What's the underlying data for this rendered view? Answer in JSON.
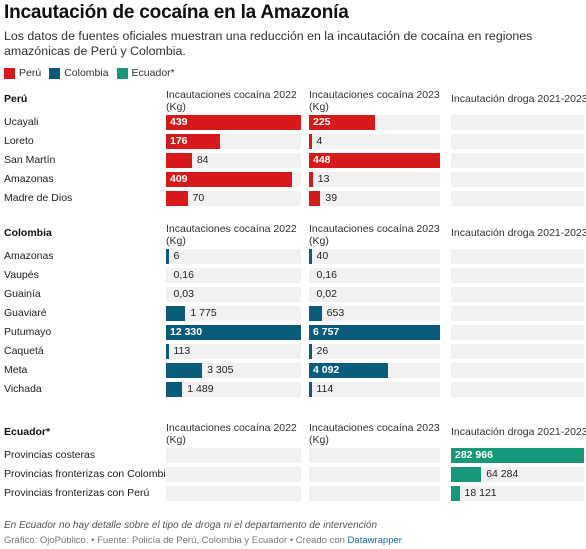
{
  "title": "Incautación de cocaína en la Amazonía",
  "subtitle": "Los datos de fuentes oficiales muestran una reducción en la incautación de cocaína en regiones amazónicas de Perú y Colombia.",
  "legend": [
    {
      "label": "Perú",
      "color": "#d7191c"
    },
    {
      "label": "Colombia",
      "color": "#0b5c7a"
    },
    {
      "label": "Ecuador*",
      "color": "#18987a"
    }
  ],
  "colors": {
    "peru": "#d7191c",
    "colombia": "#0b5c7a",
    "ecuador": "#18987a",
    "cell_bg": "#f1f1f1"
  },
  "chart_data": {
    "type": "table",
    "columns": [
      "Incautaciones cocaína 2022 (Kg)",
      "Incautaciones cocaína 2023 (Kg)",
      "Incautación droga 2021-2023"
    ],
    "sections": [
      {
        "name": "Perú",
        "color": "#d7191c",
        "headers": [
          "Incautaciones cocaína 2022 (Kg)",
          "Incautaciones cocaína 2023 (Kg)",
          "Incautación droga 2021-2023"
        ],
        "rows": [
          {
            "label": "Ucayali",
            "v2022": 439,
            "t2022": "439",
            "v2023": 225,
            "t2023": "225",
            "v2123": null,
            "t2123": ""
          },
          {
            "label": "Loreto",
            "v2022": 176,
            "t2022": "176",
            "v2023": 4,
            "t2023": "4",
            "v2123": null,
            "t2123": ""
          },
          {
            "label": "San Martín",
            "v2022": 84,
            "t2022": "84",
            "v2023": 448,
            "t2023": "448",
            "v2123": null,
            "t2123": ""
          },
          {
            "label": "Amazonas",
            "v2022": 409,
            "t2022": "409",
            "v2023": 13,
            "t2023": "13",
            "v2123": null,
            "t2123": ""
          },
          {
            "label": "Madre de Dios",
            "v2022": 70,
            "t2022": "70",
            "v2023": 39,
            "t2023": "39",
            "v2123": null,
            "t2123": ""
          }
        ]
      },
      {
        "name": "Colombia",
        "color": "#0b5c7a",
        "headers": [
          "Incautaciones cocaína 2022 (Kg)",
          "Incautaciones cocaína 2023 (Kg)",
          "Incautación droga 2021-2023"
        ],
        "rows": [
          {
            "label": "Amazonas",
            "v2022": 6,
            "t2022": "6",
            "v2023": 40,
            "t2023": "40",
            "v2123": null,
            "t2123": ""
          },
          {
            "label": "Vaupés",
            "v2022": 0.16,
            "t2022": "0,16",
            "v2023": 0.16,
            "t2023": "0,16",
            "v2123": null,
            "t2123": ""
          },
          {
            "label": "Guainía",
            "v2022": 0.03,
            "t2022": "0,03",
            "v2023": 0.02,
            "t2023": "0,02",
            "v2123": null,
            "t2123": ""
          },
          {
            "label": "Guaviaré",
            "v2022": 1775,
            "t2022": "1 775",
            "v2023": 653,
            "t2023": "653",
            "v2123": null,
            "t2123": ""
          },
          {
            "label": "Putumayo",
            "v2022": 12330,
            "t2022": "12 330",
            "v2023": 6757,
            "t2023": "6 757",
            "v2123": null,
            "t2123": ""
          },
          {
            "label": "Caquetá",
            "v2022": 113,
            "t2022": "113",
            "v2023": 26,
            "t2023": "26",
            "v2123": null,
            "t2123": ""
          },
          {
            "label": "Meta",
            "v2022": 3305,
            "t2022": "3 305",
            "v2023": 4092,
            "t2023": "4 092",
            "v2123": null,
            "t2123": ""
          },
          {
            "label": "Vichada",
            "v2022": 1489,
            "t2022": "1 489",
            "v2023": 114,
            "t2023": "114",
            "v2123": null,
            "t2123": ""
          }
        ]
      },
      {
        "name": "Ecuador*",
        "color": "#18987a",
        "headers": [
          "Incautaciones cocaína 2022 (Kg)",
          "Incautaciones cocaína 2023 (Kg)",
          "Incautación droga 2021-2023"
        ],
        "rows": [
          {
            "label": "Provincias costeras",
            "v2022": null,
            "t2022": "",
            "v2023": null,
            "t2023": "",
            "v2123": 282966,
            "t2123": "282 966"
          },
          {
            "label": "Provincias fronterizas con Colombia",
            "v2022": null,
            "t2022": "",
            "v2023": null,
            "t2023": "",
            "v2123": 64284,
            "t2123": "64 284"
          },
          {
            "label": "Provincias fronterizas con Perú",
            "v2022": null,
            "t2022": "",
            "v2023": null,
            "t2023": "",
            "v2123": 18121,
            "t2123": "18 121"
          }
        ]
      }
    ]
  },
  "footer": {
    "note": "En Ecuador no hay detalle sobre el tipo de droga ni el departamento de intervención",
    "source": "Gráfico: OjoPúblico. • Fuente: Policía de Perú, Colombia y Ecuador • Creado con",
    "link": "Datawrapper"
  }
}
